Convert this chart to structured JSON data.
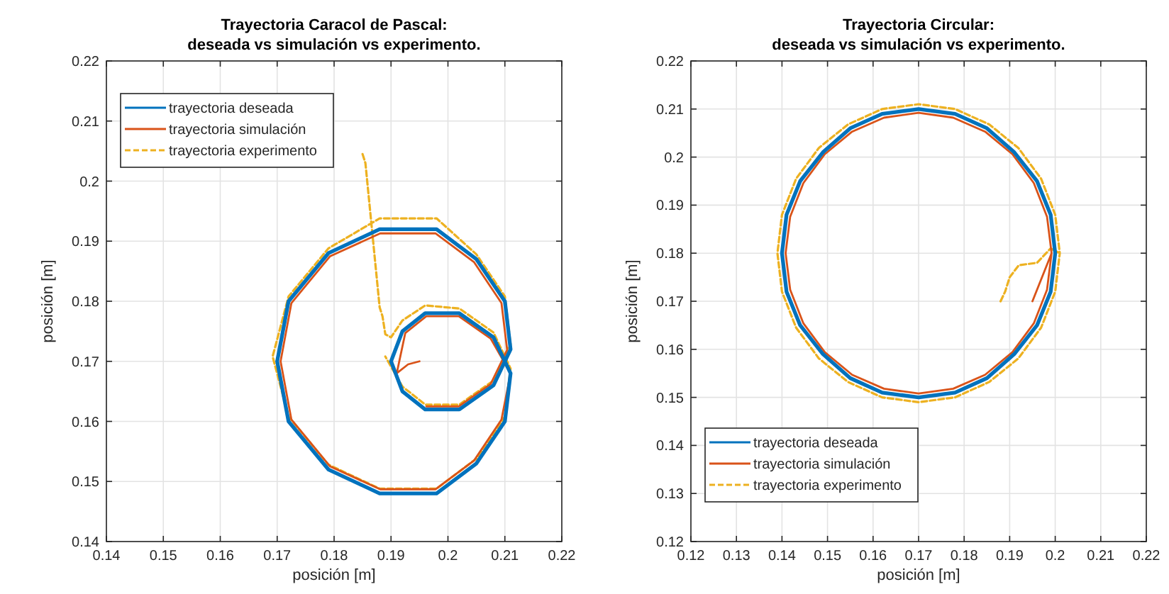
{
  "chart_data": [
    {
      "type": "line",
      "title": "Trayectoria Caracol de Pascal:\ndeseada vs simulación vs experimento.",
      "xlabel": "posición [m]",
      "ylabel": "posición [m]",
      "xlim": [
        0.14,
        0.22
      ],
      "xticks": [
        0.14,
        0.15,
        0.16,
        0.17,
        0.18,
        0.19,
        0.2,
        0.21,
        0.22
      ],
      "ylim": [
        0.14,
        0.22
      ],
      "yticks": [
        0.14,
        0.15,
        0.16,
        0.17,
        0.18,
        0.19,
        0.2,
        0.21,
        0.22
      ],
      "grid": true,
      "legend": "top left",
      "series": [
        {
          "name": "trayectoria deseada",
          "color": "#0072bd",
          "line_style": "solid",
          "x": [
            0.17,
            0.172,
            0.179,
            0.188,
            0.198,
            0.205,
            0.21,
            0.211,
            0.208,
            0.202,
            0.196,
            0.192,
            0.19,
            0.192,
            0.196,
            0.202,
            0.208,
            0.211,
            0.21,
            0.205,
            0.198,
            0.188,
            0.179,
            0.172,
            0.17,
            0.172
          ],
          "values": [
            0.17,
            0.18,
            0.188,
            0.192,
            0.192,
            0.187,
            0.18,
            0.172,
            0.166,
            0.162,
            0.162,
            0.165,
            0.17,
            0.175,
            0.178,
            0.178,
            0.174,
            0.168,
            0.16,
            0.153,
            0.148,
            0.148,
            0.152,
            0.16,
            0.17,
            0.18
          ]
        },
        {
          "name": "trayectoria simulación",
          "color": "#d95319",
          "line_style": "solid",
          "x": [
            0.195,
            0.193,
            0.191,
            0.1925,
            0.1962,
            0.2019,
            0.2075,
            0.211,
            0.2094,
            0.2046,
            0.1978,
            0.1881,
            0.1793,
            0.1725,
            0.1706,
            0.1725,
            0.1793,
            0.1881,
            0.1978,
            0.2046,
            0.2094,
            0.2104,
            0.2075,
            0.2019,
            0.1962
          ],
          "values": [
            0.17,
            0.1695,
            0.168,
            0.1747,
            0.1775,
            0.1775,
            0.1738,
            0.168,
            0.1603,
            0.1535,
            0.1487,
            0.1487,
            0.1525,
            0.1603,
            0.17,
            0.1797,
            0.1875,
            0.1913,
            0.1913,
            0.1865,
            0.1797,
            0.1719,
            0.1662,
            0.1625,
            0.1625
          ]
        },
        {
          "name": "trayectoria experimento",
          "color": "#edb120",
          "line_style": "dashed",
          "x": [
            0.185,
            0.1855,
            0.188,
            0.1885,
            0.189,
            0.19,
            0.192,
            0.196,
            0.202,
            0.208,
            0.211,
            0.21,
            0.205,
            0.198,
            0.188,
            0.179,
            0.172,
            0.1692,
            0.172,
            0.179,
            0.188,
            0.198,
            0.205,
            0.21,
            0.211,
            0.208,
            0.202,
            0.196,
            0.192,
            0.189
          ],
          "values": [
            0.2045,
            0.203,
            0.179,
            0.1775,
            0.1745,
            0.174,
            0.1768,
            0.1793,
            0.1788,
            0.1748,
            0.1688,
            0.1608,
            0.1538,
            0.1488,
            0.1488,
            0.1528,
            0.1608,
            0.1708,
            0.1808,
            0.1888,
            0.1938,
            0.1938,
            0.1878,
            0.1808,
            0.1728,
            0.1668,
            0.1628,
            0.1628,
            0.1658,
            0.1708
          ]
        }
      ]
    },
    {
      "type": "line",
      "title": "Trayectoria Circular:\ndeseada vs simulación vs experimento.",
      "xlabel": "posición [m]",
      "ylabel": "posición [m]",
      "xlim": [
        0.12,
        0.22
      ],
      "xticks": [
        0.12,
        0.13,
        0.14,
        0.15,
        0.16,
        0.17,
        0.18,
        0.19,
        0.2,
        0.21,
        0.22
      ],
      "ylim": [
        0.12,
        0.22
      ],
      "yticks": [
        0.12,
        0.13,
        0.14,
        0.15,
        0.16,
        0.17,
        0.18,
        0.19,
        0.2,
        0.21,
        0.22
      ],
      "grid": true,
      "legend": "bottom left",
      "series": [
        {
          "name": "trayectoria deseada",
          "color": "#0072bd",
          "line_style": "solid",
          "x": [
            0.2,
            0.199,
            0.196,
            0.191,
            0.185,
            0.178,
            0.17,
            0.162,
            0.155,
            0.149,
            0.144,
            0.141,
            0.14,
            0.141,
            0.144,
            0.149,
            0.155,
            0.162,
            0.17,
            0.178,
            0.185,
            0.191,
            0.196,
            0.199,
            0.2,
            0.199
          ],
          "values": [
            0.18,
            0.188,
            0.195,
            0.201,
            0.206,
            0.209,
            0.21,
            0.209,
            0.206,
            0.201,
            0.195,
            0.188,
            0.18,
            0.172,
            0.165,
            0.159,
            0.154,
            0.151,
            0.15,
            0.151,
            0.154,
            0.159,
            0.165,
            0.172,
            0.18,
            0.188
          ]
        },
        {
          "name": "trayectoria simulación",
          "color": "#d95319",
          "line_style": "solid",
          "x": [
            0.195,
            0.1992,
            0.1982,
            0.1953,
            0.1906,
            0.1846,
            0.1776,
            0.17,
            0.1624,
            0.1554,
            0.1494,
            0.1447,
            0.1418,
            0.1408,
            0.1418,
            0.1447,
            0.1494,
            0.1554,
            0.1624,
            0.17,
            0.1776,
            0.1846,
            0.1906,
            0.1953,
            0.1982,
            0.1992
          ],
          "values": [
            0.17,
            0.18,
            0.1876,
            0.1946,
            0.2006,
            0.2053,
            0.2082,
            0.2092,
            0.2082,
            0.2053,
            0.2006,
            0.1946,
            0.1876,
            0.18,
            0.1724,
            0.1654,
            0.1594,
            0.1547,
            0.1518,
            0.1508,
            0.1518,
            0.1547,
            0.1594,
            0.1654,
            0.1724,
            0.18
          ]
        },
        {
          "name": "trayectoria experimento",
          "color": "#edb120",
          "line_style": "dashed",
          "x": [
            0.188,
            0.189,
            0.19,
            0.192,
            0.196,
            0.199,
            0.201,
            0.2,
            0.1969,
            0.1919,
            0.1855,
            0.178,
            0.17,
            0.162,
            0.1545,
            0.1481,
            0.1431,
            0.14,
            0.139,
            0.14,
            0.1431,
            0.1481,
            0.1545,
            0.162,
            0.17,
            0.178,
            0.1855,
            0.1919,
            0.1969,
            0.2,
            0.201
          ],
          "values": [
            0.17,
            0.172,
            0.175,
            0.1775,
            0.178,
            0.181,
            0.18,
            0.188,
            0.1955,
            0.2019,
            0.2068,
            0.21,
            0.211,
            0.21,
            0.2068,
            0.2019,
            0.1955,
            0.188,
            0.18,
            0.172,
            0.1645,
            0.1581,
            0.1532,
            0.15,
            0.149,
            0.15,
            0.1532,
            0.1581,
            0.1645,
            0.172,
            0.18
          ]
        }
      ]
    }
  ]
}
